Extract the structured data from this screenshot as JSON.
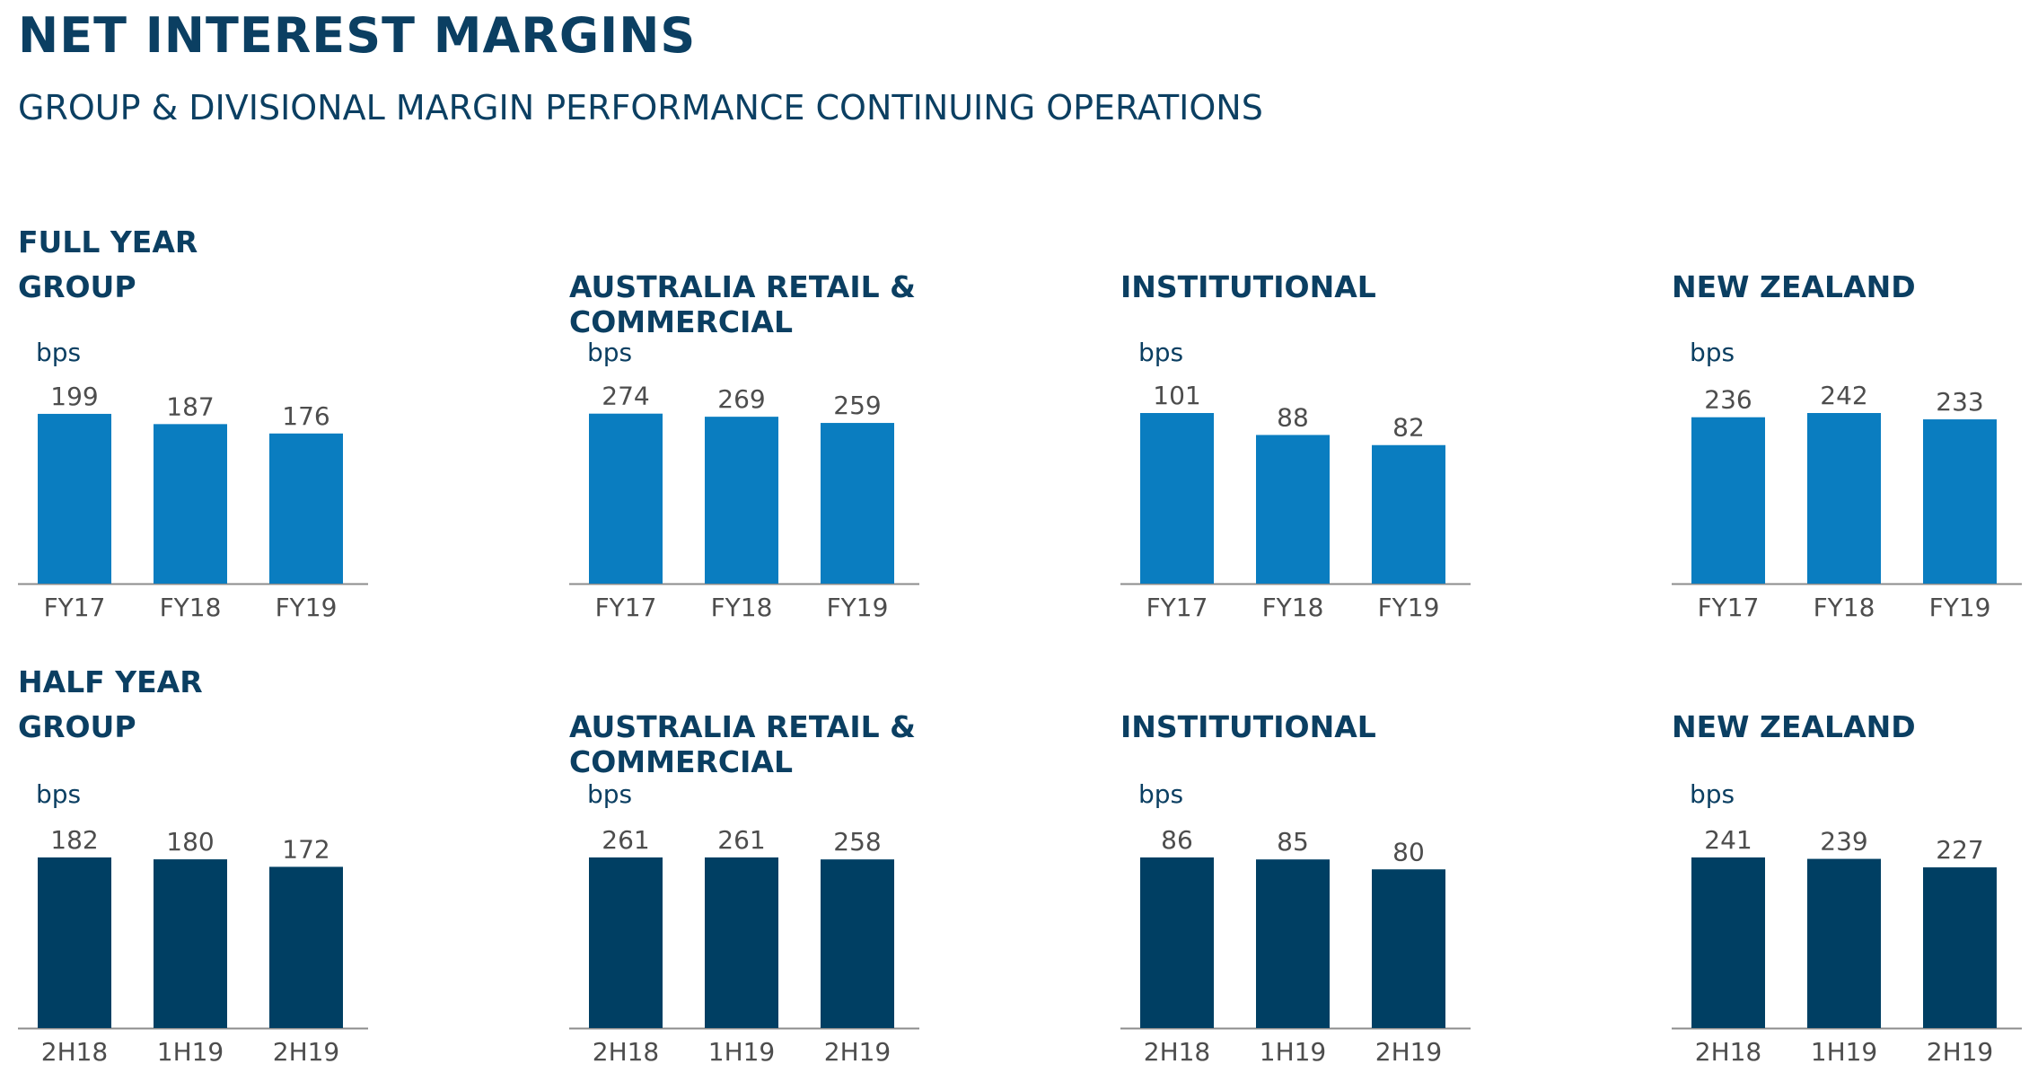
{
  "title": "NET INTEREST MARGINS",
  "subtitle": "GROUP & DIVISIONAL MARGIN PERFORMANCE CONTINUING OPERATIONS",
  "sections": {
    "full_year": "FULL YEAR",
    "half_year": "HALF YEAR"
  },
  "colors": {
    "full_year_bar": "#0a7dc0",
    "half_year_bar": "#003f63",
    "axis": "#8c8c8c"
  },
  "chart_data": [
    {
      "id": "fy-group",
      "type": "bar",
      "title_lines": [
        "GROUP"
      ],
      "ylabel": "bps",
      "categories": [
        "FY17",
        "FY18",
        "FY19"
      ],
      "values": [
        199,
        187,
        176
      ],
      "ylim": [
        0,
        200
      ]
    },
    {
      "id": "fy-arc",
      "type": "bar",
      "title_lines": [
        "AUSTRALIA RETAIL &",
        "COMMERCIAL"
      ],
      "ylabel": "bps",
      "categories": [
        "FY17",
        "FY18",
        "FY19"
      ],
      "values": [
        274,
        269,
        259
      ],
      "ylim": [
        0,
        275
      ]
    },
    {
      "id": "fy-inst",
      "type": "bar",
      "title_lines": [
        "INSTITUTIONAL"
      ],
      "ylabel": "bps",
      "categories": [
        "FY17",
        "FY18",
        "FY19"
      ],
      "values": [
        101,
        88,
        82
      ],
      "ylim": [
        0,
        101
      ]
    },
    {
      "id": "fy-nz",
      "type": "bar",
      "title_lines": [
        "NEW ZEALAND"
      ],
      "ylabel": "bps",
      "categories": [
        "FY17",
        "FY18",
        "FY19"
      ],
      "values": [
        236,
        242,
        233
      ],
      "ylim": [
        0,
        242
      ]
    },
    {
      "id": "hy-group",
      "type": "bar",
      "title_lines": [
        "GROUP"
      ],
      "ylabel": "bps",
      "categories": [
        "2H18",
        "1H19",
        "2H19"
      ],
      "values": [
        182,
        180,
        172
      ],
      "ylim": [
        0,
        182
      ]
    },
    {
      "id": "hy-arc",
      "type": "bar",
      "title_lines": [
        "AUSTRALIA RETAIL &",
        "COMMERCIAL"
      ],
      "ylabel": "bps",
      "categories": [
        "2H18",
        "1H19",
        "2H19"
      ],
      "values": [
        261,
        261,
        258
      ],
      "ylim": [
        0,
        261
      ]
    },
    {
      "id": "hy-inst",
      "type": "bar",
      "title_lines": [
        "INSTITUTIONAL"
      ],
      "ylabel": "bps",
      "categories": [
        "2H18",
        "1H19",
        "2H19"
      ],
      "values": [
        86,
        85,
        80
      ],
      "ylim": [
        0,
        86
      ]
    },
    {
      "id": "hy-nz",
      "type": "bar",
      "title_lines": [
        "NEW ZEALAND"
      ],
      "ylabel": "bps",
      "categories": [
        "2H18",
        "1H19",
        "2H19"
      ],
      "values": [
        241,
        239,
        227
      ],
      "ylim": [
        0,
        241
      ]
    }
  ]
}
